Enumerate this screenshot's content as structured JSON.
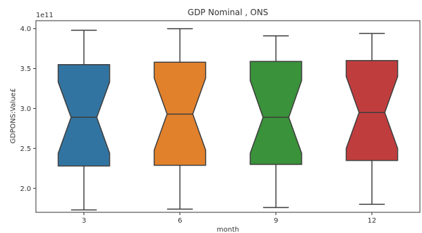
{
  "chart_data": {
    "type": "box",
    "title": "GDP Nominal , ONS",
    "xlabel": "month",
    "ylabel": "GDPONS:Value£",
    "y_scale_label": "1e11",
    "notched": true,
    "ylim": [
      1.7,
      4.1
    ],
    "ytick_values": [
      2.0,
      2.5,
      3.0,
      3.5,
      4.0
    ],
    "ytick_labels": [
      "2.0",
      "2.5",
      "3.0",
      "3.5",
      "4.0"
    ],
    "categories": [
      "3",
      "6",
      "9",
      "12"
    ],
    "colors": [
      "#3274a1",
      "#e1812c",
      "#3a923a",
      "#c03d3e"
    ],
    "boxes": [
      {
        "category": "3",
        "whisker_low": 1.73,
        "q1": 2.28,
        "notch_low": 2.44,
        "median": 2.89,
        "notch_high": 3.33,
        "q3": 3.55,
        "whisker_high": 3.98
      },
      {
        "category": "6",
        "whisker_low": 1.74,
        "q1": 2.29,
        "notch_low": 2.48,
        "median": 2.93,
        "notch_high": 3.38,
        "q3": 3.58,
        "whisker_high": 4.0
      },
      {
        "category": "9",
        "whisker_low": 1.76,
        "q1": 2.3,
        "notch_low": 2.44,
        "median": 2.89,
        "notch_high": 3.35,
        "q3": 3.59,
        "whisker_high": 3.91
      },
      {
        "category": "12",
        "whisker_low": 1.8,
        "q1": 2.35,
        "notch_low": 2.5,
        "median": 2.95,
        "notch_high": 3.4,
        "q3": 3.6,
        "whisker_high": 3.94
      }
    ],
    "grid": false,
    "legend": "none"
  }
}
